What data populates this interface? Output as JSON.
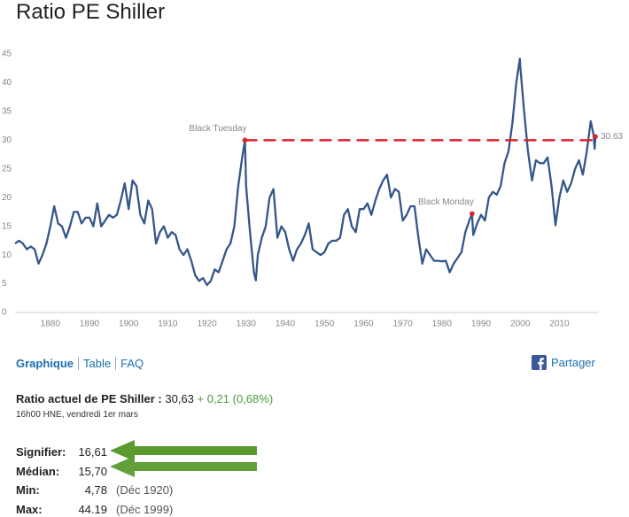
{
  "chart_data": {
    "type": "line",
    "title": "Ratio PE Shiller",
    "x": [
      1871,
      1872,
      1873,
      1874,
      1875,
      1876,
      1877,
      1878,
      1879,
      1880,
      1881,
      1882,
      1883,
      1884,
      1885,
      1886,
      1887,
      1888,
      1889,
      1890,
      1891,
      1892,
      1893,
      1894,
      1895,
      1896,
      1897,
      1898,
      1899,
      1900,
      1901,
      1902,
      1903,
      1904,
      1905,
      1906,
      1907,
      1908,
      1909,
      1910,
      1911,
      1912,
      1913,
      1914,
      1915,
      1916,
      1917,
      1918,
      1919,
      1920,
      1921,
      1922,
      1923,
      1924,
      1925,
      1926,
      1927,
      1928,
      1929,
      1929.7,
      1930,
      1931,
      1932,
      1932.5,
      1933,
      1934,
      1935,
      1936,
      1937,
      1938,
      1939,
      1940,
      1941,
      1942,
      1943,
      1944,
      1945,
      1946,
      1947,
      1948,
      1949,
      1950,
      1951,
      1952,
      1953,
      1954,
      1955,
      1956,
      1957,
      1958,
      1959,
      1960,
      1961,
      1962,
      1963,
      1964,
      1965,
      1966,
      1967,
      1968,
      1969,
      1970,
      1971,
      1972,
      1973,
      1974,
      1975,
      1976,
      1977,
      1978,
      1979,
      1980,
      1981,
      1982,
      1983,
      1984,
      1985,
      1986,
      1987,
      1987.7,
      1988,
      1989,
      1990,
      1991,
      1992,
      1993,
      1994,
      1995,
      1996,
      1997,
      1998,
      1999,
      1999.9,
      2000,
      2001,
      2002,
      2003,
      2004,
      2005,
      2006,
      2007,
      2008,
      2009,
      2010,
      2011,
      2012,
      2013,
      2014,
      2015,
      2016,
      2017,
      2018,
      2018.7,
      2019,
      2019.2
    ],
    "values": [
      12,
      12.5,
      12,
      11,
      11.5,
      11,
      8.5,
      10,
      12,
      15,
      18.5,
      15.5,
      15,
      13,
      15,
      17.5,
      17.5,
      15.5,
      16.5,
      16.5,
      15,
      19,
      15,
      16,
      17,
      16.5,
      17,
      19.5,
      22.5,
      18,
      23,
      22,
      17,
      15.5,
      19.5,
      18,
      12,
      14,
      15,
      13,
      14,
      13.5,
      11,
      10,
      11,
      9,
      6.5,
      5.5,
      6,
      4.78,
      5.5,
      7.5,
      7,
      9,
      11,
      12,
      15,
      22,
      27,
      30,
      22,
      14,
      7,
      5.6,
      10,
      13,
      15,
      20,
      21.5,
      13,
      15,
      14,
      11,
      9,
      11,
      12,
      13.5,
      15.5,
      11,
      10.5,
      10,
      10.5,
      12,
      12.5,
      12.5,
      13,
      17,
      18,
      15,
      14,
      18,
      18,
      19,
      17,
      19.5,
      21.5,
      23,
      24,
      20,
      21.5,
      21,
      16,
      17,
      18.5,
      18.5,
      13,
      8.5,
      11,
      10,
      9,
      9,
      8.9,
      9,
      7,
      8.5,
      9.5,
      10.5,
      14,
      16,
      17.2,
      13.5,
      15.5,
      17,
      16,
      20,
      21,
      20.5,
      22,
      26,
      28,
      33,
      40,
      44.19,
      43,
      35,
      28,
      23,
      26.5,
      26,
      26,
      27,
      22,
      15.2,
      20,
      23,
      21,
      22.5,
      25,
      26.5,
      24,
      28,
      33.3,
      31,
      28.5,
      30.63
    ],
    "color": "#34568b",
    "xlim": [
      1871,
      2020
    ],
    "xticks": [
      1880,
      1890,
      1900,
      1910,
      1920,
      1930,
      1940,
      1950,
      1960,
      1970,
      1980,
      1990,
      2000,
      2010
    ],
    "ylim": [
      0,
      45
    ],
    "yticks": [
      0,
      5,
      10,
      15,
      20,
      25,
      30,
      35,
      40,
      45
    ],
    "grid": false,
    "annotations": [
      {
        "label": "Black Tuesday",
        "x": 1929.7,
        "y": 30
      },
      {
        "label": "Black Monday",
        "x": 1987.7,
        "y": 17.2
      },
      {
        "label": "30.63",
        "x": 2019.2,
        "y": 30.63
      }
    ],
    "reference_line": {
      "y": 30,
      "x": [
        1929.7,
        2019.2
      ],
      "color": "#d9232e"
    }
  },
  "links": [
    "Graphique",
    "Table",
    "FAQ"
  ],
  "share": "Partager",
  "current": {
    "label": "Ratio actuel de PE Shiller :",
    "value": "30,63",
    "change": "+ 0,21 (0,68%)",
    "time": "16h00 HNE, vendredi 1er mars"
  },
  "stats": [
    {
      "label": "Signifier:",
      "value": "16,61"
    },
    {
      "label": "Médian:",
      "value": "15,70"
    },
    {
      "label": "Min:",
      "value": "4,78",
      "date": "(Déc 1920)"
    },
    {
      "label": "Max:",
      "value": "44.19",
      "date": "(Déc 1999)"
    }
  ]
}
